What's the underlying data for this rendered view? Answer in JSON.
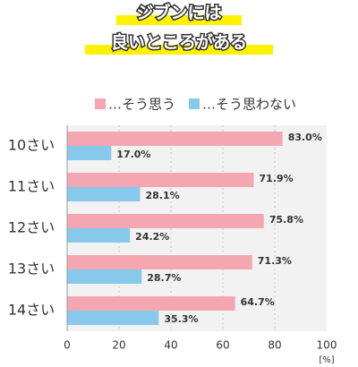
{
  "chart_data": {
    "type": "hbar",
    "title_lines": [
      "ジブンには",
      "良いところがある"
    ],
    "categories": [
      "10さい",
      "11さい",
      "12さい",
      "13さい",
      "14さい"
    ],
    "series": [
      {
        "name": "…そう思う",
        "color": "#f4a7b0",
        "values": [
          83.0,
          71.9,
          75.8,
          71.3,
          64.7
        ],
        "value_labels": [
          "83.0%",
          "71.9%",
          "75.8%",
          "71.3%",
          "64.7%"
        ]
      },
      {
        "name": "…そう思わない",
        "color": "#86c9ea",
        "values": [
          17.0,
          28.1,
          24.2,
          28.7,
          35.3
        ],
        "value_labels": [
          "17.0%",
          "28.1%",
          "24.2%",
          "28.7%",
          "35.3%"
        ]
      }
    ],
    "xlim": [
      0,
      100
    ],
    "xticks": [
      0,
      20,
      40,
      60,
      80,
      100
    ],
    "xlabel": "[%]",
    "grid": true,
    "legend": "top-right"
  }
}
